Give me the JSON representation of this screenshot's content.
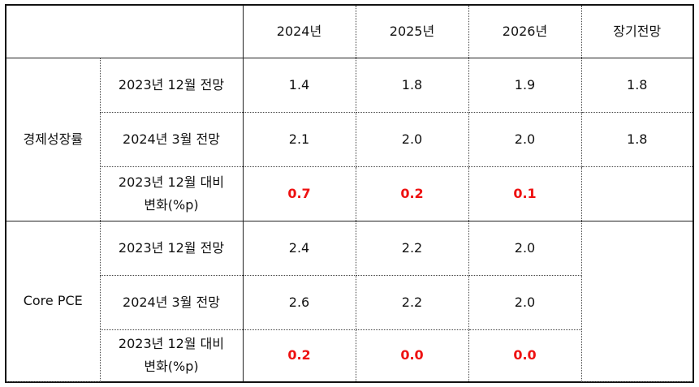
{
  "header": {
    "empty": "",
    "years": [
      "2024년",
      "2025년",
      "2026년"
    ],
    "long_term": "장기전망"
  },
  "groups": [
    {
      "name": "경제성장률",
      "rows": [
        {
          "label": "2023년 12월 전망",
          "values": [
            "1.4",
            "1.8",
            "1.9"
          ],
          "long_term": "1.8"
        },
        {
          "label": "2024년 3월 전망",
          "values": [
            "2.1",
            "2.0",
            "2.0"
          ],
          "long_term": "1.8"
        },
        {
          "label_line1": "2023년 12월 대비",
          "label_line2": "변화(%p)",
          "values": [
            "0.7",
            "0.2",
            "0.1"
          ],
          "long_term": ""
        }
      ]
    },
    {
      "name": "Core PCE",
      "rows": [
        {
          "label": "2023년 12월 전망",
          "values": [
            "2.4",
            "2.2",
            "2.0"
          ]
        },
        {
          "label": "2024년 3월 전망",
          "values": [
            "2.6",
            "2.2",
            "2.0"
          ]
        },
        {
          "label_line1": "2023년 12월 대비",
          "label_line2": "변화(%p)",
          "values": [
            "0.2",
            "0.0",
            "0.0"
          ]
        }
      ],
      "long_term": ""
    }
  ],
  "colors": {
    "change_value": "#ee1111"
  }
}
